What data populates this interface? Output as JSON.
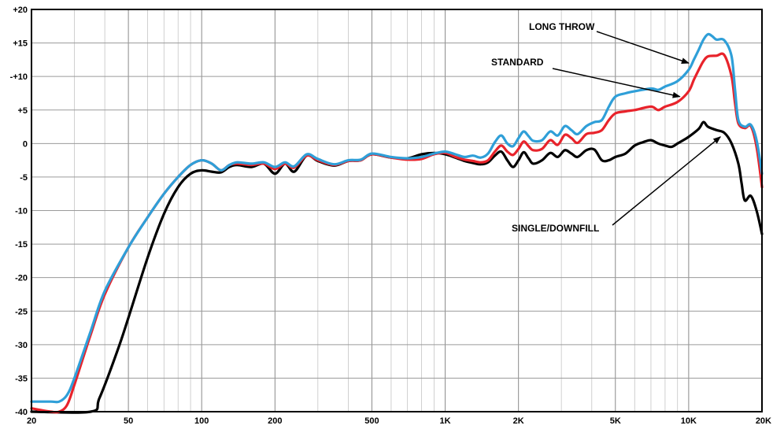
{
  "chart_data": {
    "type": "line",
    "x_scale": "log",
    "xlim": [
      20,
      20000
    ],
    "ylim": [
      -40,
      20
    ],
    "grid": true,
    "x_tick_values": [
      20,
      50,
      100,
      200,
      500,
      1000,
      2000,
      5000,
      10000,
      20000
    ],
    "x_tick_labels": [
      "20",
      "50",
      "100",
      "200",
      "500",
      "1K",
      "2K",
      "5K",
      "10K",
      "20K"
    ],
    "y_tick_values": [
      20,
      15,
      10,
      5,
      0,
      -5,
      -10,
      -15,
      -20,
      -25,
      -30,
      -35,
      -40
    ],
    "y_tick_labels": [
      "+20",
      "+15",
      "-+10",
      "+5",
      "0",
      "-5",
      "-10",
      "-15",
      "-20",
      "-25",
      "-30",
      "-35",
      "-40"
    ],
    "series": [
      {
        "name": "LONG THROW",
        "color": "#2f9fd8",
        "points": [
          [
            20,
            -38.5
          ],
          [
            24,
            -38.5
          ],
          [
            26,
            -38.5
          ],
          [
            28,
            -37.5
          ],
          [
            30,
            -35
          ],
          [
            35,
            -28
          ],
          [
            40,
            -22
          ],
          [
            50,
            -15.5
          ],
          [
            60,
            -11
          ],
          [
            70,
            -7.5
          ],
          [
            80,
            -5
          ],
          [
            90,
            -3.2
          ],
          [
            100,
            -2.5
          ],
          [
            110,
            -3
          ],
          [
            120,
            -4
          ],
          [
            130,
            -3.2
          ],
          [
            140,
            -2.8
          ],
          [
            160,
            -3
          ],
          [
            180,
            -2.8
          ],
          [
            200,
            -3.5
          ],
          [
            220,
            -2.8
          ],
          [
            240,
            -3.4
          ],
          [
            270,
            -1.6
          ],
          [
            300,
            -2.3
          ],
          [
            350,
            -3.1
          ],
          [
            400,
            -2.5
          ],
          [
            450,
            -2.4
          ],
          [
            500,
            -1.5
          ],
          [
            600,
            -2
          ],
          [
            700,
            -2.2
          ],
          [
            800,
            -2
          ],
          [
            900,
            -1.5
          ],
          [
            1000,
            -1.2
          ],
          [
            1100,
            -1.6
          ],
          [
            1200,
            -2
          ],
          [
            1300,
            -1.8
          ],
          [
            1400,
            -2.1
          ],
          [
            1500,
            -1.5
          ],
          [
            1600,
            0.2
          ],
          [
            1700,
            1.2
          ],
          [
            1800,
            0
          ],
          [
            1900,
            -0.4
          ],
          [
            2000,
            0.8
          ],
          [
            2100,
            1.8
          ],
          [
            2200,
            1.1
          ],
          [
            2300,
            0.4
          ],
          [
            2500,
            0.5
          ],
          [
            2700,
            1.8
          ],
          [
            2900,
            1.2
          ],
          [
            3100,
            2.6
          ],
          [
            3300,
            2
          ],
          [
            3500,
            1.4
          ],
          [
            3800,
            2.6
          ],
          [
            4100,
            3.2
          ],
          [
            4400,
            3.5
          ],
          [
            4700,
            5.5
          ],
          [
            5000,
            7
          ],
          [
            5500,
            7.5
          ],
          [
            6000,
            7.8
          ],
          [
            7000,
            8.2
          ],
          [
            7500,
            8
          ],
          [
            8000,
            8.5
          ],
          [
            9000,
            9.3
          ],
          [
            10000,
            11
          ],
          [
            10500,
            12.5
          ],
          [
            11000,
            14
          ],
          [
            11500,
            15.5
          ],
          [
            12000,
            16.3
          ],
          [
            12500,
            16
          ],
          [
            13000,
            15.5
          ],
          [
            14000,
            15.4
          ],
          [
            15000,
            13
          ],
          [
            15500,
            8
          ],
          [
            16000,
            3.5
          ],
          [
            17000,
            2.5
          ],
          [
            18000,
            2.8
          ],
          [
            19000,
            0.5
          ],
          [
            20000,
            -4.5
          ]
        ]
      },
      {
        "name": "STANDARD",
        "color": "#e8232b",
        "points": [
          [
            20,
            -39.5
          ],
          [
            24,
            -40
          ],
          [
            26,
            -40
          ],
          [
            28,
            -39
          ],
          [
            30,
            -36
          ],
          [
            35,
            -28.5
          ],
          [
            40,
            -22.5
          ],
          [
            50,
            -15.5
          ],
          [
            60,
            -11
          ],
          [
            70,
            -7.5
          ],
          [
            80,
            -5
          ],
          [
            90,
            -3.2
          ],
          [
            100,
            -2.5
          ],
          [
            110,
            -3
          ],
          [
            120,
            -4
          ],
          [
            130,
            -3.2
          ],
          [
            140,
            -3
          ],
          [
            160,
            -3.2
          ],
          [
            180,
            -3
          ],
          [
            200,
            -3.8
          ],
          [
            220,
            -3
          ],
          [
            240,
            -3.6
          ],
          [
            270,
            -1.8
          ],
          [
            300,
            -2.5
          ],
          [
            350,
            -3.2
          ],
          [
            400,
            -2.6
          ],
          [
            450,
            -2.5
          ],
          [
            500,
            -1.6
          ],
          [
            600,
            -2.1
          ],
          [
            700,
            -2.4
          ],
          [
            800,
            -2.3
          ],
          [
            900,
            -1.6
          ],
          [
            1000,
            -1.4
          ],
          [
            1100,
            -2
          ],
          [
            1200,
            -2.4
          ],
          [
            1300,
            -2.6
          ],
          [
            1400,
            -2.8
          ],
          [
            1500,
            -2.5
          ],
          [
            1600,
            -1.2
          ],
          [
            1700,
            -0.3
          ],
          [
            1800,
            -1.2
          ],
          [
            1900,
            -1.7
          ],
          [
            2000,
            -0.8
          ],
          [
            2100,
            0.3
          ],
          [
            2200,
            -0.4
          ],
          [
            2300,
            -1
          ],
          [
            2500,
            -0.8
          ],
          [
            2700,
            0.5
          ],
          [
            2900,
            -0.2
          ],
          [
            3100,
            1.3
          ],
          [
            3300,
            0.8
          ],
          [
            3500,
            0.1
          ],
          [
            3800,
            1.4
          ],
          [
            4100,
            1.6
          ],
          [
            4400,
            2
          ],
          [
            4700,
            3.5
          ],
          [
            5000,
            4.5
          ],
          [
            5500,
            4.8
          ],
          [
            6000,
            5
          ],
          [
            7000,
            5.5
          ],
          [
            7500,
            5
          ],
          [
            8000,
            5.5
          ],
          [
            9000,
            6.2
          ],
          [
            10000,
            7.8
          ],
          [
            10500,
            9.5
          ],
          [
            11000,
            11
          ],
          [
            11500,
            12.3
          ],
          [
            12000,
            13
          ],
          [
            13000,
            13.1
          ],
          [
            14000,
            13.2
          ],
          [
            15000,
            10
          ],
          [
            15500,
            6
          ],
          [
            16000,
            3
          ],
          [
            17000,
            2.3
          ],
          [
            18000,
            2.6
          ],
          [
            19000,
            -0.5
          ],
          [
            20000,
            -6.5
          ]
        ]
      },
      {
        "name": "SINGLE/DOWNFILL",
        "color": "#000000",
        "points": [
          [
            20,
            -40
          ],
          [
            35,
            -40
          ],
          [
            38,
            -38
          ],
          [
            45,
            -31
          ],
          [
            50,
            -26
          ],
          [
            60,
            -17
          ],
          [
            70,
            -10.5
          ],
          [
            80,
            -6.5
          ],
          [
            90,
            -4.5
          ],
          [
            100,
            -4
          ],
          [
            110,
            -4.2
          ],
          [
            120,
            -4.3
          ],
          [
            130,
            -3.5
          ],
          [
            140,
            -3.2
          ],
          [
            160,
            -3.5
          ],
          [
            180,
            -3
          ],
          [
            200,
            -4.5
          ],
          [
            220,
            -3
          ],
          [
            240,
            -4.2
          ],
          [
            270,
            -1.8
          ],
          [
            300,
            -2.6
          ],
          [
            350,
            -3.3
          ],
          [
            400,
            -2.6
          ],
          [
            450,
            -2.5
          ],
          [
            500,
            -1.6
          ],
          [
            600,
            -2.1
          ],
          [
            700,
            -2.2
          ],
          [
            800,
            -1.6
          ],
          [
            900,
            -1.4
          ],
          [
            1000,
            -1.6
          ],
          [
            1100,
            -2.1
          ],
          [
            1200,
            -2.6
          ],
          [
            1300,
            -2.9
          ],
          [
            1400,
            -3.1
          ],
          [
            1500,
            -2.8
          ],
          [
            1600,
            -1.8
          ],
          [
            1700,
            -1.2
          ],
          [
            1800,
            -2.5
          ],
          [
            1900,
            -3.5
          ],
          [
            2000,
            -2.5
          ],
          [
            2100,
            -1.3
          ],
          [
            2200,
            -2.2
          ],
          [
            2300,
            -3
          ],
          [
            2500,
            -2.5
          ],
          [
            2700,
            -1.4
          ],
          [
            2900,
            -2
          ],
          [
            3100,
            -1
          ],
          [
            3300,
            -1.5
          ],
          [
            3500,
            -2
          ],
          [
            3800,
            -1
          ],
          [
            4100,
            -0.9
          ],
          [
            4400,
            -2.5
          ],
          [
            4700,
            -2.5
          ],
          [
            5000,
            -2
          ],
          [
            5500,
            -1.5
          ],
          [
            6000,
            -0.3
          ],
          [
            6500,
            0.2
          ],
          [
            7000,
            0.5
          ],
          [
            7500,
            0
          ],
          [
            8000,
            -0.3
          ],
          [
            8500,
            -0.5
          ],
          [
            9000,
            0
          ],
          [
            9500,
            0.5
          ],
          [
            10000,
            1
          ],
          [
            11000,
            2.2
          ],
          [
            11500,
            3.2
          ],
          [
            12000,
            2.5
          ],
          [
            13000,
            2
          ],
          [
            14000,
            1.6
          ],
          [
            15000,
            0
          ],
          [
            16000,
            -3
          ],
          [
            16500,
            -6
          ],
          [
            17000,
            -8.5
          ],
          [
            18000,
            -7.8
          ],
          [
            19000,
            -10
          ],
          [
            20000,
            -13.5
          ]
        ]
      }
    ],
    "annotations": [
      {
        "text": "LONG THROW",
        "series": "LONG THROW",
        "x": 10000,
        "y": 12
      },
      {
        "text": "STANDARD",
        "series": "STANDARD",
        "x": 9200,
        "y": 7
      },
      {
        "text": "SINGLE/DOWNFILL",
        "series": "SINGLE/DOWNFILL",
        "x": 13500,
        "y": 1
      }
    ]
  }
}
